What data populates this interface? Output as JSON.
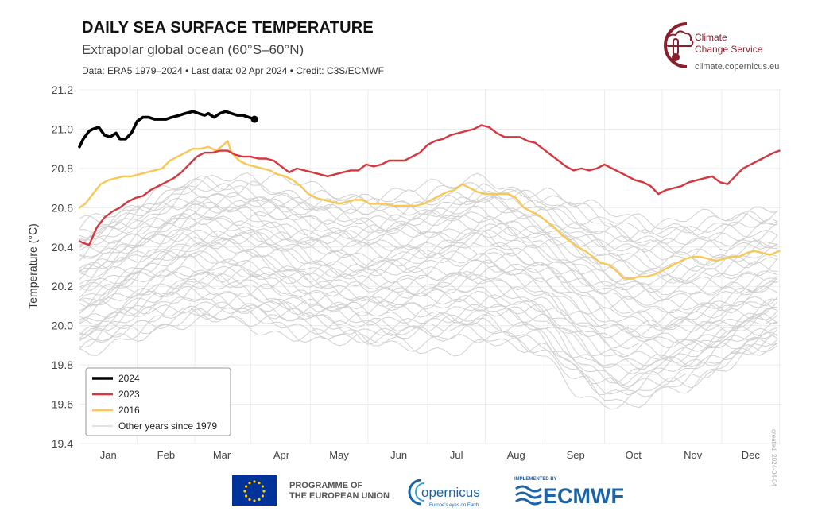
{
  "header": {
    "title": "DAILY SEA SURFACE TEMPERATURE",
    "subtitle": "Extrapolar global ocean (60°S–60°N)",
    "meta": "Data: ERA5 1979–2024 • Last data: 02 Apr 2024 • Credit: C3S/ECMWF"
  },
  "brand": {
    "name_line1": "Climate",
    "name_line2": "Change Service",
    "url": "climate.copernicus.eu",
    "logo_icon": "thermometer-cloud-icon"
  },
  "side_credit": "created: 2024-04-04",
  "footer": {
    "eu_line1": "PROGRAMME OF",
    "eu_line2": "THE EUROPEAN UNION",
    "copernicus_name": "opernicus",
    "copernicus_tagline": "Europe's eyes on Earth",
    "ecmwf_implemented": "IMPLEMENTED BY",
    "ecmwf_name": "ECMWF"
  },
  "colors": {
    "y2024": "#000000",
    "y2023": "#d6373f",
    "y2016": "#f7c856",
    "other": "#d0d0d0",
    "brand": "#8a1f2c",
    "eu_blue": "#003399",
    "ecmwf_blue": "#1b64a8"
  },
  "chart_data": {
    "type": "line",
    "ylabel": "Temperature (°C)",
    "xlabel": "",
    "ylim": [
      19.4,
      21.2
    ],
    "xlim": [
      1,
      366
    ],
    "y_ticks": [
      "19.4",
      "19.6",
      "19.8",
      "20.0",
      "20.2",
      "20.4",
      "20.6",
      "20.8",
      "21.0",
      "21.2"
    ],
    "x_ticks": [
      {
        "label": "Jan",
        "day": 16
      },
      {
        "label": "Feb",
        "day": 46
      },
      {
        "label": "Mar",
        "day": 75
      },
      {
        "label": "Apr",
        "day": 106
      },
      {
        "label": "May",
        "day": 136
      },
      {
        "label": "Jun",
        "day": 167
      },
      {
        "label": "Jul",
        "day": 197
      },
      {
        "label": "Aug",
        "day": 228
      },
      {
        "label": "Sep",
        "day": 259
      },
      {
        "label": "Oct",
        "day": 289
      },
      {
        "label": "Nov",
        "day": 320
      },
      {
        "label": "Dec",
        "day": 350
      }
    ],
    "grid": true,
    "legend_position": "bottom-left",
    "legend": [
      "2024",
      "2023",
      "2016",
      "Other years since 1979"
    ],
    "series": [
      {
        "name": "2024",
        "style": "bold",
        "end_marker": true,
        "points": [
          [
            1,
            20.91
          ],
          [
            3,
            20.95
          ],
          [
            6,
            20.99
          ],
          [
            8,
            21.0
          ],
          [
            11,
            21.01
          ],
          [
            14,
            20.97
          ],
          [
            17,
            20.96
          ],
          [
            20,
            20.98
          ],
          [
            22,
            20.95
          ],
          [
            25,
            20.95
          ],
          [
            28,
            20.98
          ],
          [
            31,
            21.04
          ],
          [
            34,
            21.06
          ],
          [
            37,
            21.06
          ],
          [
            40,
            21.05
          ],
          [
            43,
            21.05
          ],
          [
            46,
            21.05
          ],
          [
            49,
            21.06
          ],
          [
            53,
            21.07
          ],
          [
            56,
            21.08
          ],
          [
            60,
            21.09
          ],
          [
            63,
            21.08
          ],
          [
            66,
            21.07
          ],
          [
            68,
            21.08
          ],
          [
            71,
            21.06
          ],
          [
            74,
            21.08
          ],
          [
            77,
            21.09
          ],
          [
            80,
            21.08
          ],
          [
            83,
            21.07
          ],
          [
            86,
            21.07
          ],
          [
            89,
            21.06
          ],
          [
            92,
            21.05
          ]
        ]
      },
      {
        "name": "2023",
        "points": [
          [
            1,
            20.43
          ],
          [
            3,
            20.42
          ],
          [
            6,
            20.41
          ],
          [
            10,
            20.5
          ],
          [
            14,
            20.55
          ],
          [
            18,
            20.58
          ],
          [
            22,
            20.6
          ],
          [
            26,
            20.63
          ],
          [
            30,
            20.65
          ],
          [
            34,
            20.66
          ],
          [
            38,
            20.69
          ],
          [
            42,
            20.71
          ],
          [
            46,
            20.73
          ],
          [
            50,
            20.75
          ],
          [
            54,
            20.78
          ],
          [
            58,
            20.82
          ],
          [
            62,
            20.86
          ],
          [
            66,
            20.88
          ],
          [
            70,
            20.88
          ],
          [
            74,
            20.89
          ],
          [
            78,
            20.89
          ],
          [
            82,
            20.87
          ],
          [
            86,
            20.86
          ],
          [
            90,
            20.86
          ],
          [
            94,
            20.85
          ],
          [
            98,
            20.85
          ],
          [
            102,
            20.84
          ],
          [
            106,
            20.81
          ],
          [
            110,
            20.78
          ],
          [
            114,
            20.8
          ],
          [
            118,
            20.79
          ],
          [
            122,
            20.78
          ],
          [
            126,
            20.77
          ],
          [
            130,
            20.76
          ],
          [
            134,
            20.77
          ],
          [
            138,
            20.78
          ],
          [
            142,
            20.79
          ],
          [
            146,
            20.79
          ],
          [
            150,
            20.82
          ],
          [
            154,
            20.81
          ],
          [
            158,
            20.82
          ],
          [
            162,
            20.84
          ],
          [
            166,
            20.84
          ],
          [
            170,
            20.84
          ],
          [
            174,
            20.86
          ],
          [
            178,
            20.88
          ],
          [
            182,
            20.92
          ],
          [
            186,
            20.94
          ],
          [
            190,
            20.95
          ],
          [
            194,
            20.97
          ],
          [
            198,
            20.98
          ],
          [
            202,
            20.99
          ],
          [
            206,
            21.0
          ],
          [
            210,
            21.02
          ],
          [
            214,
            21.01
          ],
          [
            218,
            20.98
          ],
          [
            222,
            20.96
          ],
          [
            226,
            20.96
          ],
          [
            230,
            20.96
          ],
          [
            234,
            20.94
          ],
          [
            238,
            20.93
          ],
          [
            242,
            20.9
          ],
          [
            246,
            20.87
          ],
          [
            250,
            20.84
          ],
          [
            254,
            20.81
          ],
          [
            258,
            20.79
          ],
          [
            262,
            20.8
          ],
          [
            266,
            20.79
          ],
          [
            270,
            20.8
          ],
          [
            274,
            20.82
          ],
          [
            278,
            20.8
          ],
          [
            282,
            20.78
          ],
          [
            286,
            20.76
          ],
          [
            290,
            20.74
          ],
          [
            294,
            20.73
          ],
          [
            298,
            20.71
          ],
          [
            302,
            20.67
          ],
          [
            306,
            20.69
          ],
          [
            310,
            20.7
          ],
          [
            314,
            20.71
          ],
          [
            318,
            20.73
          ],
          [
            322,
            20.74
          ],
          [
            326,
            20.75
          ],
          [
            330,
            20.76
          ],
          [
            334,
            20.73
          ],
          [
            338,
            20.72
          ],
          [
            342,
            20.76
          ],
          [
            346,
            20.8
          ],
          [
            350,
            20.82
          ],
          [
            354,
            20.84
          ],
          [
            358,
            20.86
          ],
          [
            362,
            20.88
          ],
          [
            365,
            20.89
          ]
        ]
      },
      {
        "name": "2016",
        "points": [
          [
            1,
            20.6
          ],
          [
            4,
            20.62
          ],
          [
            8,
            20.67
          ],
          [
            12,
            20.72
          ],
          [
            16,
            20.74
          ],
          [
            20,
            20.75
          ],
          [
            24,
            20.76
          ],
          [
            28,
            20.76
          ],
          [
            32,
            20.77
          ],
          [
            36,
            20.78
          ],
          [
            40,
            20.79
          ],
          [
            44,
            20.8
          ],
          [
            48,
            20.84
          ],
          [
            52,
            20.86
          ],
          [
            56,
            20.88
          ],
          [
            60,
            20.9
          ],
          [
            64,
            20.9
          ],
          [
            68,
            20.91
          ],
          [
            72,
            20.89
          ],
          [
            76,
            20.92
          ],
          [
            78,
            20.94
          ],
          [
            80,
            20.88
          ],
          [
            84,
            20.84
          ],
          [
            88,
            20.82
          ],
          [
            92,
            20.81
          ],
          [
            96,
            20.8
          ],
          [
            100,
            20.79
          ],
          [
            104,
            20.77
          ],
          [
            108,
            20.76
          ],
          [
            112,
            20.74
          ],
          [
            116,
            20.71
          ],
          [
            120,
            20.67
          ],
          [
            124,
            20.65
          ],
          [
            128,
            20.64
          ],
          [
            132,
            20.63
          ],
          [
            136,
            20.62
          ],
          [
            140,
            20.63
          ],
          [
            144,
            20.64
          ],
          [
            148,
            20.64
          ],
          [
            152,
            20.62
          ],
          [
            156,
            20.62
          ],
          [
            160,
            20.62
          ],
          [
            164,
            20.61
          ],
          [
            168,
            20.61
          ],
          [
            172,
            20.61
          ],
          [
            176,
            20.61
          ],
          [
            180,
            20.62
          ],
          [
            184,
            20.64
          ],
          [
            188,
            20.66
          ],
          [
            192,
            20.68
          ],
          [
            196,
            20.69
          ],
          [
            200,
            20.72
          ],
          [
            204,
            20.7
          ],
          [
            208,
            20.68
          ],
          [
            212,
            20.67
          ],
          [
            216,
            20.67
          ],
          [
            220,
            20.67
          ],
          [
            224,
            20.67
          ],
          [
            228,
            20.65
          ],
          [
            232,
            20.6
          ],
          [
            236,
            20.58
          ],
          [
            240,
            20.56
          ],
          [
            244,
            20.53
          ],
          [
            248,
            20.5
          ],
          [
            252,
            20.46
          ],
          [
            256,
            20.43
          ],
          [
            260,
            20.4
          ],
          [
            264,
            20.38
          ],
          [
            268,
            20.35
          ],
          [
            272,
            20.32
          ],
          [
            276,
            20.31
          ],
          [
            280,
            20.28
          ],
          [
            284,
            20.24
          ],
          [
            288,
            20.24
          ],
          [
            292,
            20.25
          ],
          [
            296,
            20.25
          ],
          [
            300,
            20.26
          ],
          [
            304,
            20.28
          ],
          [
            308,
            20.3
          ],
          [
            312,
            20.32
          ],
          [
            316,
            20.34
          ],
          [
            320,
            20.35
          ],
          [
            324,
            20.35
          ],
          [
            328,
            20.34
          ],
          [
            332,
            20.33
          ],
          [
            336,
            20.34
          ],
          [
            340,
            20.35
          ],
          [
            344,
            20.35
          ],
          [
            348,
            20.37
          ],
          [
            352,
            20.38
          ],
          [
            356,
            20.37
          ],
          [
            360,
            20.36
          ],
          [
            365,
            20.38
          ]
        ]
      },
      {
        "name": "Other years since 1979",
        "style": "envelope",
        "low": [
          [
            1,
            19.86
          ],
          [
            31,
            19.95
          ],
          [
            59,
            20.02
          ],
          [
            90,
            20.0
          ],
          [
            120,
            19.95
          ],
          [
            151,
            19.9
          ],
          [
            181,
            19.9
          ],
          [
            212,
            19.92
          ],
          [
            243,
            19.85
          ],
          [
            258,
            19.7
          ],
          [
            273,
            19.6
          ],
          [
            285,
            19.57
          ],
          [
            300,
            19.65
          ],
          [
            320,
            19.7
          ],
          [
            335,
            19.78
          ],
          [
            350,
            19.85
          ],
          [
            365,
            19.88
          ]
        ],
        "high": [
          [
            1,
            20.52
          ],
          [
            31,
            20.62
          ],
          [
            59,
            20.74
          ],
          [
            90,
            20.75
          ],
          [
            120,
            20.68
          ],
          [
            151,
            20.66
          ],
          [
            181,
            20.68
          ],
          [
            212,
            20.74
          ],
          [
            243,
            20.68
          ],
          [
            273,
            20.58
          ],
          [
            304,
            20.54
          ],
          [
            334,
            20.56
          ],
          [
            365,
            20.6
          ]
        ],
        "center": [
          [
            1,
            20.18
          ],
          [
            31,
            20.3
          ],
          [
            59,
            20.4
          ],
          [
            90,
            20.38
          ],
          [
            120,
            20.3
          ],
          [
            151,
            20.28
          ],
          [
            181,
            20.3
          ],
          [
            212,
            20.35
          ],
          [
            243,
            20.28
          ],
          [
            273,
            20.12
          ],
          [
            304,
            20.05
          ],
          [
            334,
            20.1
          ],
          [
            365,
            20.18
          ]
        ]
      }
    ]
  }
}
